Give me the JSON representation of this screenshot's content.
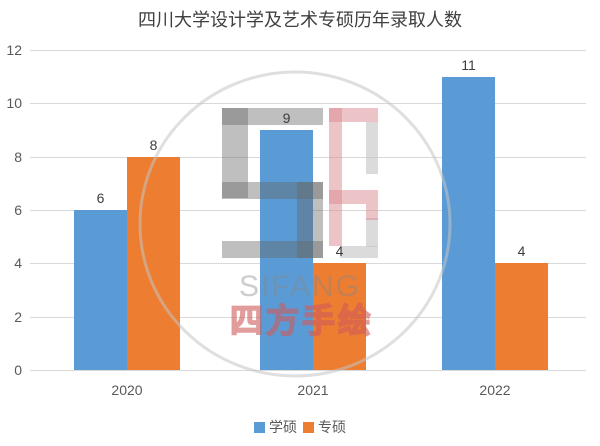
{
  "chart_data": {
    "type": "bar",
    "title": "四川大学设计学及艺术专硕历年录取人数",
    "categories": [
      "2020",
      "2021",
      "2022"
    ],
    "series": [
      {
        "name": "学硕",
        "color": "#5B9BD5",
        "values": [
          6,
          9,
          11
        ]
      },
      {
        "name": "专硕",
        "color": "#ED7D31",
        "values": [
          8,
          4,
          4
        ]
      }
    ],
    "ylim": [
      0,
      12
    ],
    "yticks": [
      0,
      2,
      4,
      6,
      8,
      10,
      12
    ],
    "grid": true,
    "gridline_color": "#D9D9D9",
    "legend_position": "bottom",
    "data_labels_shown": true
  },
  "watermark": {
    "name_en": "SIFANG",
    "name_cn": "四方手绘",
    "circle_color": "#C4C4C4",
    "logo_s_color": "#666666",
    "logo_f_color": "#D98A8F",
    "logo_light_color": "#BDBDBD",
    "cn_stroke_color": "#CE5A5A",
    "en_color": "#888888"
  },
  "text_colors": {
    "title": "#3F3F3F",
    "axis": "#595959",
    "data_label": "#3D3D3D"
  }
}
